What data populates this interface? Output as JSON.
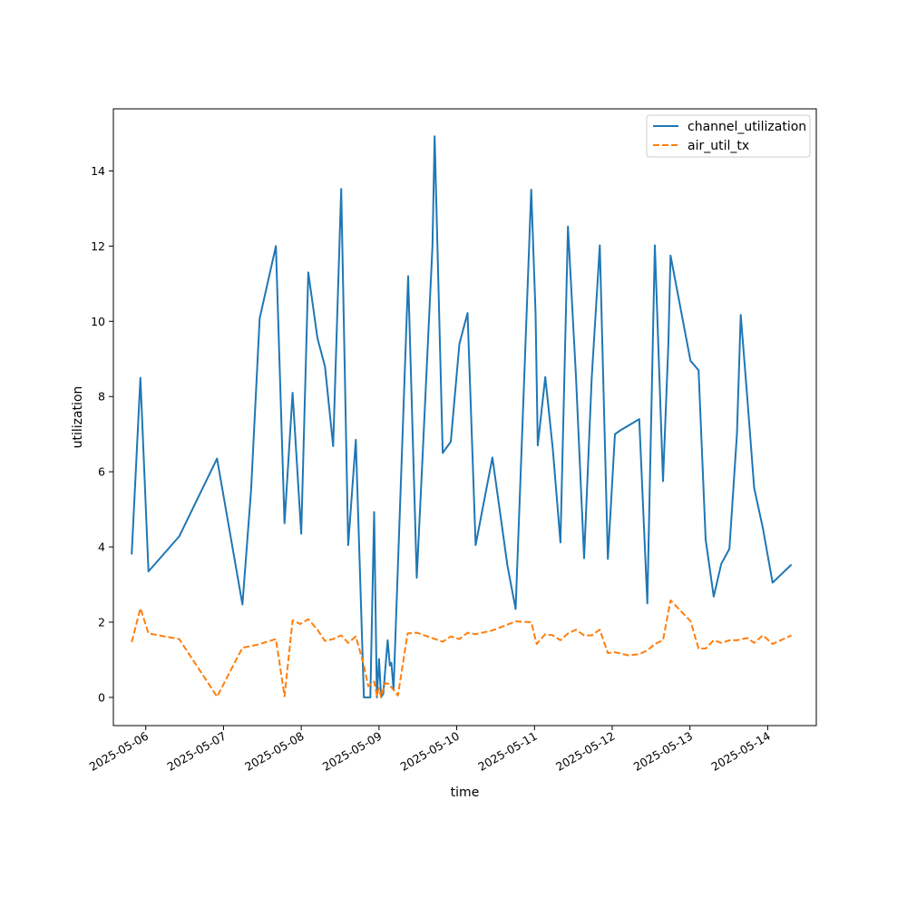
{
  "chart_data": {
    "type": "line",
    "title": "",
    "xlabel": "time",
    "ylabel": "utilization",
    "x_type": "datetime",
    "xlim": [
      "2025-05-05T14:00",
      "2025-05-14T15:00"
    ],
    "ylim": [
      -0.75,
      15.65
    ],
    "x_ticks": [
      "2025-05-06",
      "2025-05-07",
      "2025-05-08",
      "2025-05-09",
      "2025-05-10",
      "2025-05-11",
      "2025-05-12",
      "2025-05-13",
      "2025-05-14"
    ],
    "y_ticks": [
      0,
      2,
      4,
      6,
      8,
      10,
      12,
      14
    ],
    "grid": false,
    "legend_position": "top-right",
    "series": [
      {
        "name": "channel_utilization",
        "color": "#1f77b4",
        "style": "solid",
        "points": [
          [
            "2025-05-05T19:40",
            3.8
          ],
          [
            "2025-05-05T22:20",
            8.5
          ],
          [
            "2025-05-06T00:50",
            3.35
          ],
          [
            "2025-05-06T10:20",
            4.28
          ],
          [
            "2025-05-06T22:00",
            6.35
          ],
          [
            "2025-05-07T05:50",
            2.47
          ],
          [
            "2025-05-07T08:30",
            5.5
          ],
          [
            "2025-05-07T11:10",
            10.08
          ],
          [
            "2025-05-07T16:10",
            12.0
          ],
          [
            "2025-05-07T18:50",
            4.63
          ],
          [
            "2025-05-07T21:20",
            8.1
          ],
          [
            "2025-05-08T00:00",
            4.35
          ],
          [
            "2025-05-08T02:10",
            11.3
          ],
          [
            "2025-05-08T05:00",
            9.55
          ],
          [
            "2025-05-08T07:20",
            8.8
          ],
          [
            "2025-05-08T09:50",
            6.68
          ],
          [
            "2025-05-08T12:20",
            13.52
          ],
          [
            "2025-05-08T14:30",
            4.05
          ],
          [
            "2025-05-08T16:50",
            6.85
          ],
          [
            "2025-05-08T19:20",
            0.0
          ],
          [
            "2025-05-08T21:20",
            0.0
          ],
          [
            "2025-05-08T22:30",
            4.93
          ],
          [
            "2025-05-08T23:20",
            0.0
          ],
          [
            "2025-05-09T00:00",
            1.02
          ],
          [
            "2025-05-09T00:40",
            0.0
          ],
          [
            "2025-05-09T01:20",
            0.1
          ],
          [
            "2025-05-09T02:40",
            1.52
          ],
          [
            "2025-05-09T03:20",
            0.85
          ],
          [
            "2025-05-09T03:50",
            0.92
          ],
          [
            "2025-05-09T04:30",
            0.2
          ],
          [
            "2025-05-09T07:30",
            7.5
          ],
          [
            "2025-05-09T09:00",
            11.2
          ],
          [
            "2025-05-09T11:40",
            3.18
          ],
          [
            "2025-05-09T13:20",
            6.2
          ],
          [
            "2025-05-09T16:30",
            12.0
          ],
          [
            "2025-05-09T17:10",
            14.92
          ],
          [
            "2025-05-09T19:40",
            6.5
          ],
          [
            "2025-05-09T22:10",
            6.8
          ],
          [
            "2025-05-10T00:50",
            9.4
          ],
          [
            "2025-05-10T03:20",
            10.22
          ],
          [
            "2025-05-10T05:50",
            4.05
          ],
          [
            "2025-05-10T11:00",
            6.38
          ],
          [
            "2025-05-10T15:40",
            3.5
          ],
          [
            "2025-05-10T18:10",
            2.35
          ],
          [
            "2025-05-10T23:00",
            13.5
          ],
          [
            "2025-05-11T00:20",
            10.2
          ],
          [
            "2025-05-11T01:00",
            6.7
          ],
          [
            "2025-05-11T03:20",
            8.52
          ],
          [
            "2025-05-11T05:40",
            6.6
          ],
          [
            "2025-05-11T08:00",
            4.12
          ],
          [
            "2025-05-11T10:20",
            12.52
          ],
          [
            "2025-05-11T12:50",
            8.5
          ],
          [
            "2025-05-11T15:20",
            3.7
          ],
          [
            "2025-05-11T17:40",
            8.5
          ],
          [
            "2025-05-11T20:10",
            12.02
          ],
          [
            "2025-05-11T22:40",
            3.68
          ],
          [
            "2025-05-12T00:50",
            7.0
          ],
          [
            "2025-05-12T02:30",
            7.1
          ],
          [
            "2025-05-12T08:20",
            7.4
          ],
          [
            "2025-05-12T10:50",
            2.5
          ],
          [
            "2025-05-12T13:10",
            12.02
          ],
          [
            "2025-05-12T15:40",
            5.75
          ],
          [
            "2025-05-12T17:20",
            9.4
          ],
          [
            "2025-05-12T18:00",
            11.75
          ],
          [
            "2025-05-13T00:10",
            8.95
          ],
          [
            "2025-05-13T02:40",
            8.7
          ],
          [
            "2025-05-13T04:50",
            4.2
          ],
          [
            "2025-05-13T07:20",
            2.68
          ],
          [
            "2025-05-13T09:40",
            3.55
          ],
          [
            "2025-05-13T12:10",
            3.95
          ],
          [
            "2025-05-13T14:30",
            7.0
          ],
          [
            "2025-05-13T15:40",
            10.17
          ],
          [
            "2025-05-13T17:40",
            8.0
          ],
          [
            "2025-05-13T19:50",
            5.57
          ],
          [
            "2025-05-13T22:30",
            4.5
          ],
          [
            "2025-05-14T01:30",
            3.05
          ],
          [
            "2025-05-14T07:20",
            3.53
          ]
        ]
      },
      {
        "name": "air_util_tx",
        "color": "#ff7f0e",
        "style": "dashed",
        "points": [
          [
            "2025-05-05T19:40",
            1.47
          ],
          [
            "2025-05-05T22:20",
            2.37
          ],
          [
            "2025-05-06T00:50",
            1.7
          ],
          [
            "2025-05-06T10:20",
            1.55
          ],
          [
            "2025-05-06T22:00",
            0.02
          ],
          [
            "2025-05-07T05:50",
            1.32
          ],
          [
            "2025-05-07T10:20",
            1.4
          ],
          [
            "2025-05-07T16:10",
            1.55
          ],
          [
            "2025-05-07T18:50",
            0.03
          ],
          [
            "2025-05-07T21:20",
            2.05
          ],
          [
            "2025-05-07T23:40",
            1.95
          ],
          [
            "2025-05-08T02:10",
            2.08
          ],
          [
            "2025-05-08T05:00",
            1.8
          ],
          [
            "2025-05-08T07:20",
            1.5
          ],
          [
            "2025-05-08T09:50",
            1.55
          ],
          [
            "2025-05-08T12:20",
            1.65
          ],
          [
            "2025-05-08T14:30",
            1.45
          ],
          [
            "2025-05-08T16:50",
            1.62
          ],
          [
            "2025-05-08T19:20",
            0.85
          ],
          [
            "2025-05-08T20:40",
            0.3
          ],
          [
            "2025-05-08T22:30",
            0.42
          ],
          [
            "2025-05-08T23:20",
            0.05
          ],
          [
            "2025-05-09T00:00",
            0.25
          ],
          [
            "2025-05-09T00:40",
            0.0
          ],
          [
            "2025-05-09T01:50",
            0.38
          ],
          [
            "2025-05-09T03:00",
            0.36
          ],
          [
            "2025-05-09T05:50",
            0.05
          ],
          [
            "2025-05-09T08:50",
            1.7
          ],
          [
            "2025-05-09T11:40",
            1.72
          ],
          [
            "2025-05-09T19:40",
            1.48
          ],
          [
            "2025-05-09T22:10",
            1.62
          ],
          [
            "2025-05-10T00:50",
            1.55
          ],
          [
            "2025-05-10T03:20",
            1.72
          ],
          [
            "2025-05-10T05:50",
            1.68
          ],
          [
            "2025-05-10T11:00",
            1.78
          ],
          [
            "2025-05-10T18:10",
            2.02
          ],
          [
            "2025-05-10T23:00",
            2.0
          ],
          [
            "2025-05-11T00:40",
            1.42
          ],
          [
            "2025-05-11T03:20",
            1.68
          ],
          [
            "2025-05-11T05:40",
            1.65
          ],
          [
            "2025-05-11T08:00",
            1.52
          ],
          [
            "2025-05-11T10:20",
            1.7
          ],
          [
            "2025-05-11T12:50",
            1.8
          ],
          [
            "2025-05-11T15:20",
            1.65
          ],
          [
            "2025-05-11T17:40",
            1.65
          ],
          [
            "2025-05-11T20:10",
            1.8
          ],
          [
            "2025-05-11T22:40",
            1.18
          ],
          [
            "2025-05-12T00:50",
            1.2
          ],
          [
            "2025-05-12T05:00",
            1.12
          ],
          [
            "2025-05-12T08:20",
            1.15
          ],
          [
            "2025-05-12T10:50",
            1.25
          ],
          [
            "2025-05-12T13:10",
            1.42
          ],
          [
            "2025-05-12T15:40",
            1.52
          ],
          [
            "2025-05-12T18:00",
            2.58
          ],
          [
            "2025-05-13T00:10",
            2.03
          ],
          [
            "2025-05-13T02:40",
            1.3
          ],
          [
            "2025-05-13T04:50",
            1.3
          ],
          [
            "2025-05-13T07:20",
            1.52
          ],
          [
            "2025-05-13T09:40",
            1.45
          ],
          [
            "2025-05-13T12:10",
            1.52
          ],
          [
            "2025-05-13T14:30",
            1.52
          ],
          [
            "2025-05-13T17:40",
            1.58
          ],
          [
            "2025-05-13T19:50",
            1.45
          ],
          [
            "2025-05-13T22:30",
            1.65
          ],
          [
            "2025-05-14T01:30",
            1.42
          ],
          [
            "2025-05-14T07:20",
            1.65
          ]
        ]
      }
    ]
  }
}
